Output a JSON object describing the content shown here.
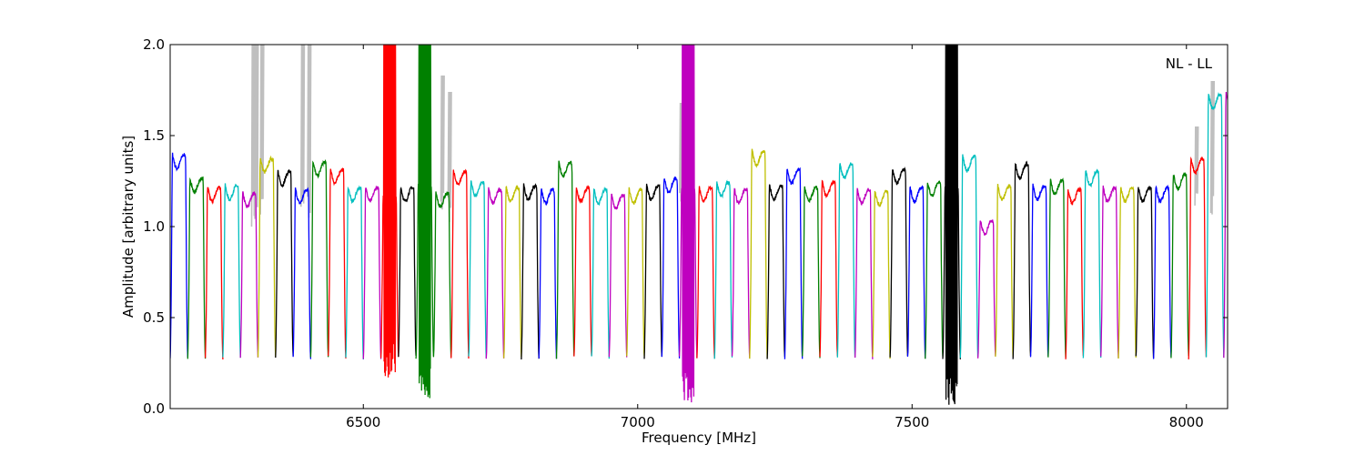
{
  "chart_data": {
    "type": "line",
    "title": "",
    "xlabel": "Frequency [MHz]",
    "ylabel": "Amplitude [arbitrary units]",
    "xlim": [
      6148,
      8075
    ],
    "ylim": [
      0.0,
      2.0
    ],
    "x_ticks": [
      6500,
      7000,
      7500,
      8000
    ],
    "x_tick_labels": [
      "6500",
      "7000",
      "7500",
      "8000"
    ],
    "y_ticks": [
      0.0,
      0.5,
      1.0,
      1.5,
      2.0
    ],
    "y_tick_labels": [
      "0.0",
      "0.5",
      "1.0",
      "1.5",
      "2.0"
    ],
    "annotation": "NL - LL",
    "annotation_position": "top-right",
    "grid": false,
    "background_series_color": "#bfbfbf",
    "palette": [
      "#0000ff",
      "#008000",
      "#ff0000",
      "#00bfbf",
      "#bf00bf",
      "#bfbf00",
      "#000000"
    ],
    "subband_width_mhz": 32,
    "subband_start_mhz": 6148,
    "subband_peaks": [
      1.39,
      1.26,
      1.21,
      1.22,
      1.18,
      1.37,
      1.3,
      1.2,
      1.35,
      1.31,
      1.21,
      1.21,
      1.16,
      1.21,
      1.22,
      1.18,
      1.3,
      1.24,
      1.2,
      1.21,
      1.22,
      1.2,
      1.35,
      1.21,
      1.2,
      1.17,
      1.2,
      1.22,
      1.26,
      1.21,
      1.21,
      1.24,
      1.2,
      1.41,
      1.22,
      1.31,
      1.21,
      1.24,
      1.34,
      1.2,
      1.19,
      1.31,
      1.21,
      1.24,
      1.21,
      1.38,
      1.03,
      1.22,
      1.34,
      1.22,
      1.25,
      1.2,
      1.3,
      1.21,
      1.21,
      1.21,
      1.21,
      1.28,
      1.37,
      1.72,
      1.73
    ],
    "noisy_subbands": [
      {
        "index": 12,
        "color": "#ff0000",
        "min": 0.17,
        "max": 2.0
      },
      {
        "index": 14,
        "color": "#008000",
        "min": 0.05,
        "max": 2.0
      },
      {
        "index": 29,
        "color": "#bf00bf",
        "min": 0.03,
        "max": 2.0
      },
      {
        "index": 44,
        "color": "#000000",
        "min": 0.0,
        "max": 2.0
      }
    ],
    "gray_spikes": [
      {
        "x": 6300,
        "max": 2.0
      },
      {
        "x": 6306,
        "max": 2.0
      },
      {
        "x": 6316,
        "max": 2.0
      },
      {
        "x": 6390,
        "max": 2.0
      },
      {
        "x": 6402,
        "max": 2.0
      },
      {
        "x": 6605,
        "max": 2.0
      },
      {
        "x": 6645,
        "max": 1.83
      },
      {
        "x": 6658,
        "max": 1.74
      },
      {
        "x": 7080,
        "max": 1.68
      },
      {
        "x": 8019,
        "max": 1.55
      },
      {
        "x": 8048,
        "max": 1.8
      }
    ]
  }
}
